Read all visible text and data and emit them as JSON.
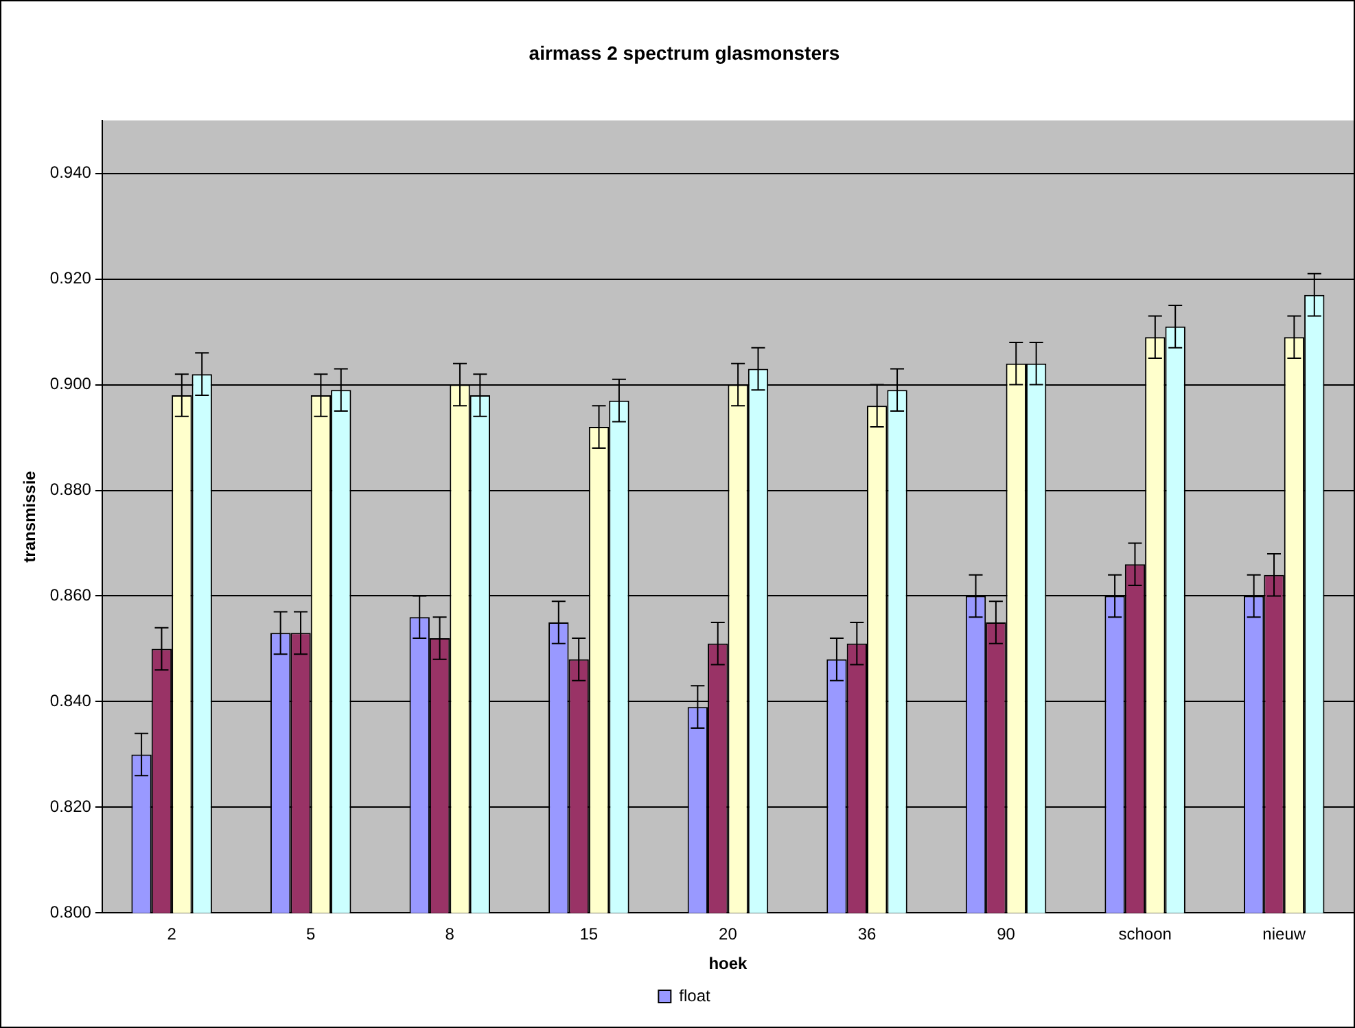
{
  "chart_data": {
    "type": "bar",
    "title": "airmass 2 spectrum glasmonsters",
    "xlabel": "hoek",
    "ylabel": "transmissie",
    "categories": [
      "2",
      "5",
      "8",
      "15",
      "20",
      "36",
      "90",
      "schoon",
      "nieuw"
    ],
    "series": [
      {
        "name": "float",
        "color": "#9999ff",
        "values": [
          0.83,
          0.853,
          0.856,
          0.855,
          0.839,
          0.848,
          0.86,
          0.86,
          0.86
        ],
        "errors": [
          0.004,
          0.004,
          0.004,
          0.004,
          0.004,
          0.004,
          0.004,
          0.004,
          0.004
        ]
      },
      {
        "color": "#993366",
        "values": [
          0.85,
          0.853,
          0.852,
          0.848,
          0.851,
          0.851,
          0.855,
          0.866,
          0.864
        ],
        "errors": [
          0.004,
          0.004,
          0.004,
          0.004,
          0.004,
          0.004,
          0.004,
          0.004,
          0.004
        ]
      },
      {
        "color": "#ffffcc",
        "values": [
          0.898,
          0.898,
          0.9,
          0.892,
          0.9,
          0.896,
          0.904,
          0.909,
          0.909
        ],
        "errors": [
          0.004,
          0.004,
          0.004,
          0.004,
          0.004,
          0.004,
          0.004,
          0.004,
          0.004
        ]
      },
      {
        "color": "#ccffff",
        "values": [
          0.902,
          0.899,
          0.898,
          0.897,
          0.903,
          0.899,
          0.904,
          0.911,
          0.917
        ],
        "errors": [
          0.004,
          0.004,
          0.004,
          0.004,
          0.004,
          0.004,
          0.004,
          0.004,
          0.004
        ]
      }
    ],
    "ylim": [
      0.8,
      0.95
    ],
    "yticks": [
      {
        "value": 0.8,
        "label": "0.800"
      },
      {
        "value": 0.82,
        "label": "0.820"
      },
      {
        "value": 0.84,
        "label": "0.840"
      },
      {
        "value": 0.86,
        "label": "0.860"
      },
      {
        "value": 0.88,
        "label": "0.880"
      },
      {
        "value": 0.9,
        "label": "0.900"
      },
      {
        "value": 0.92,
        "label": "0.920"
      },
      {
        "value": 0.94,
        "label": "0.940"
      }
    ],
    "grid": "y",
    "legend": "bottom"
  }
}
